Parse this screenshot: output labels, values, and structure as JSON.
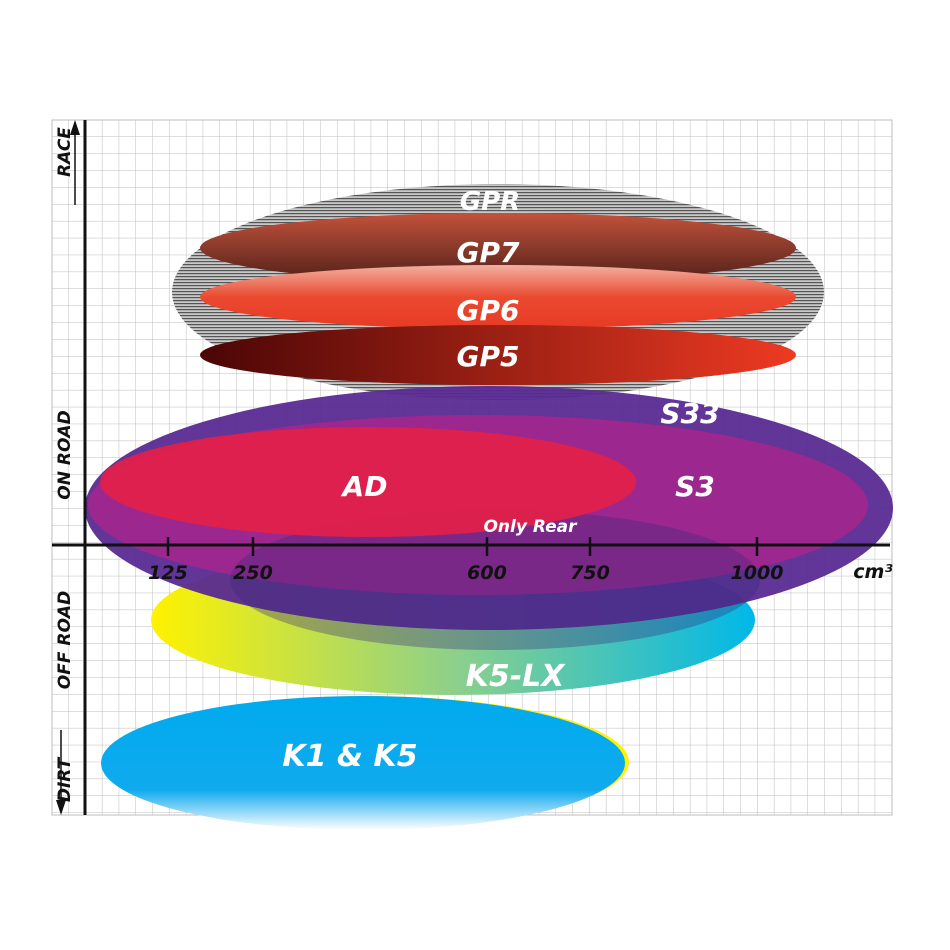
{
  "chart_data": {
    "type": "positioning-diagram",
    "xlabel": "cm³",
    "x_ticks": [
      "125",
      "250",
      "600",
      "750",
      "1000"
    ],
    "y_labels": [
      "RACE",
      "ON ROAD",
      "OFF ROAD",
      "DIRT"
    ],
    "grid": true,
    "regions": [
      {
        "name": "GPR",
        "color": "#9a9a9a"
      },
      {
        "name": "GP7",
        "color": "#8a3a2a"
      },
      {
        "name": "GP6",
        "color": "#e8452e"
      },
      {
        "name": "GP5",
        "color": "#7a0e0e"
      },
      {
        "name": "S33",
        "color": "#5a2a92"
      },
      {
        "name": "S3",
        "color": "#a3268e"
      },
      {
        "name": "AD",
        "color": "#e0204a"
      },
      {
        "name": "Only Rear",
        "color": "#b0308a"
      },
      {
        "name": "K5-LX",
        "color": "#20b8d8"
      },
      {
        "name": "K1 & K5",
        "color": "#00a8ec"
      }
    ]
  }
}
